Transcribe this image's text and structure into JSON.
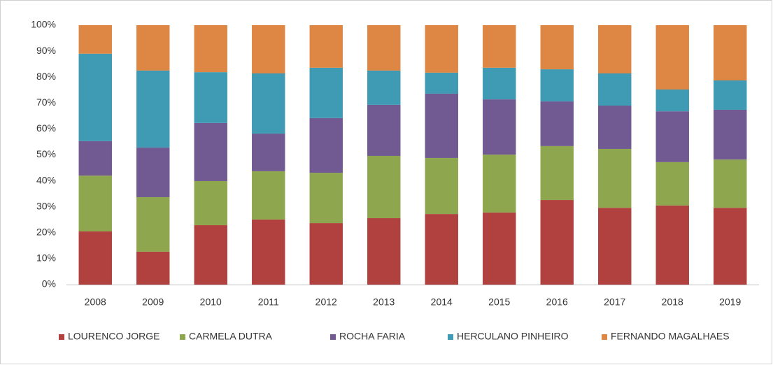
{
  "chart_data": {
    "type": "stacked-bar-100",
    "categories": [
      "2008",
      "2009",
      "2010",
      "2011",
      "2012",
      "2013",
      "2014",
      "2015",
      "2016",
      "2017",
      "2018",
      "2019"
    ],
    "series": [
      {
        "name": "LOURENCO JORGE",
        "color": "#b0413e",
        "values": [
          20.5,
          12.7,
          22.9,
          25.1,
          23.7,
          25.6,
          27.2,
          27.8,
          32.6,
          29.6,
          30.5,
          29.6
        ]
      },
      {
        "name": "CARMELA DUTRA",
        "color": "#8ea74e",
        "values": [
          21.5,
          21,
          17,
          18.6,
          19.4,
          24,
          21.6,
          22.3,
          20.8,
          22.7,
          16.7,
          18.6
        ]
      },
      {
        "name": "ROCHA FARIA",
        "color": "#715a91",
        "values": [
          13.3,
          19.1,
          22.4,
          14.5,
          21.1,
          19.7,
          24.8,
          21.3,
          17.2,
          16.7,
          19.6,
          19.2
        ]
      },
      {
        "name": "HERCULANO PINHEIRO",
        "color": "#3f9ab3",
        "values": [
          33.7,
          29.7,
          19.6,
          23.2,
          19.4,
          13.2,
          8.1,
          12.2,
          12.4,
          12.4,
          8.4,
          11.3
        ]
      },
      {
        "name": "FERNANDO MAGALHAES",
        "color": "#de8744",
        "values": [
          11,
          17.5,
          18.1,
          18.6,
          16.4,
          17.5,
          18.3,
          16.4,
          17,
          18.6,
          24.8,
          21.3
        ]
      }
    ],
    "ylim": [
      0,
      100
    ],
    "yticks": [
      {
        "value": 0,
        "label": "0%"
      },
      {
        "value": 10,
        "label": "10%"
      },
      {
        "value": 20,
        "label": "20%"
      },
      {
        "value": 30,
        "label": "30%"
      },
      {
        "value": 40,
        "label": "40%"
      },
      {
        "value": 50,
        "label": "50%"
      },
      {
        "value": 60,
        "label": "60%"
      },
      {
        "value": 70,
        "label": "70%"
      },
      {
        "value": 80,
        "label": "80%"
      },
      {
        "value": 90,
        "label": "90%"
      },
      {
        "value": 100,
        "label": "100%"
      }
    ],
    "grid": false,
    "legend": "bottom"
  }
}
